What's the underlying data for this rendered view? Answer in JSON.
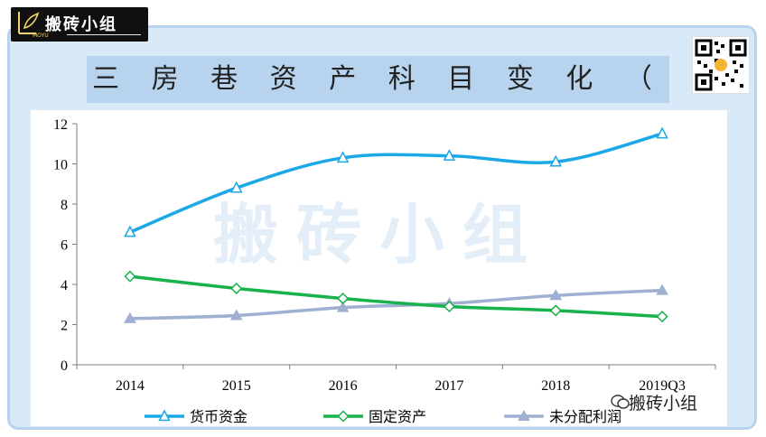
{
  "brand": {
    "name": "搬砖小组",
    "sub": "MOYU"
  },
  "title": "三 房 巷 资 产 科 目 变 化 （ 亿 元 ）",
  "watermark": "搬砖小组",
  "corner_label": "搬砖小组",
  "chart_data": {
    "type": "line",
    "title": "三房巷资产科目变化（亿元）",
    "categories": [
      "2014",
      "2015",
      "2016",
      "2017",
      "2018",
      "2019Q3"
    ],
    "ylim": [
      0,
      12
    ],
    "yticks": [
      0,
      2,
      4,
      6,
      8,
      10,
      12
    ],
    "grid": false,
    "legend": "bottom",
    "series": [
      {
        "name": "货币资金",
        "values": [
          6.6,
          8.8,
          10.3,
          10.4,
          10.1,
          11.5
        ],
        "color": "#1aa8e6",
        "marker": "triangle-open"
      },
      {
        "name": "固定资产",
        "values": [
          4.4,
          3.8,
          3.3,
          2.9,
          2.7,
          2.4
        ],
        "color": "#17b24c",
        "marker": "diamond-open"
      },
      {
        "name": "未分配利润",
        "values": [
          2.3,
          2.45,
          2.85,
          3.05,
          3.45,
          3.7
        ],
        "color": "#9fb0d2",
        "marker": "triangle-filled"
      }
    ]
  }
}
